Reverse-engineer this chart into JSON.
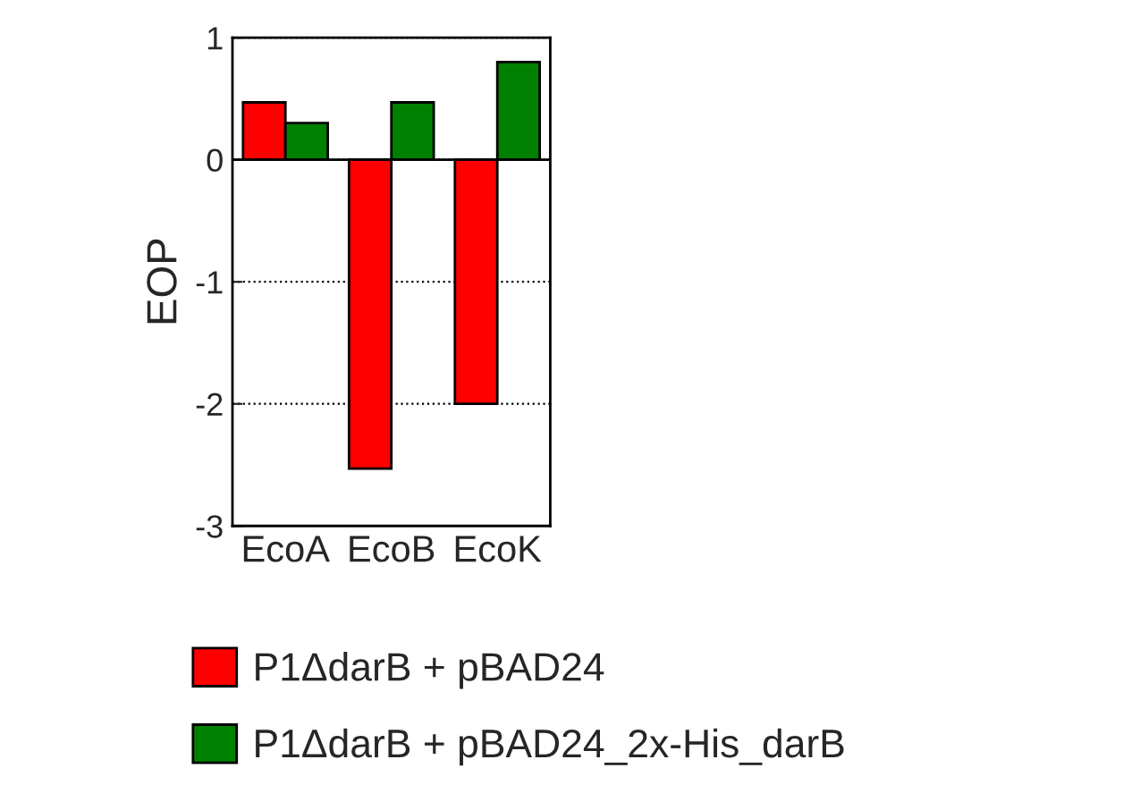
{
  "chart_data": {
    "type": "bar",
    "ylabel": "EOP",
    "categories": [
      "EcoA",
      "EcoB",
      "EcoK"
    ],
    "series": [
      {
        "name": "P1ΔdarB + pBAD24",
        "color": "#ff0000",
        "values": [
          0.47,
          -2.53,
          -2.0
        ]
      },
      {
        "name": "P1ΔdarB + pBAD24_2x-His_darB",
        "color": "#008000",
        "values": [
          0.3,
          0.47,
          0.8
        ]
      }
    ],
    "ylim": [
      -3,
      1
    ],
    "yticks": [
      -3,
      -2,
      -1,
      0,
      1
    ],
    "grid": "y",
    "legend": "bottom",
    "ref_lines": [
      {
        "axis": "y",
        "value": 0,
        "color": "#000000",
        "line_style": "solid"
      }
    ]
  }
}
